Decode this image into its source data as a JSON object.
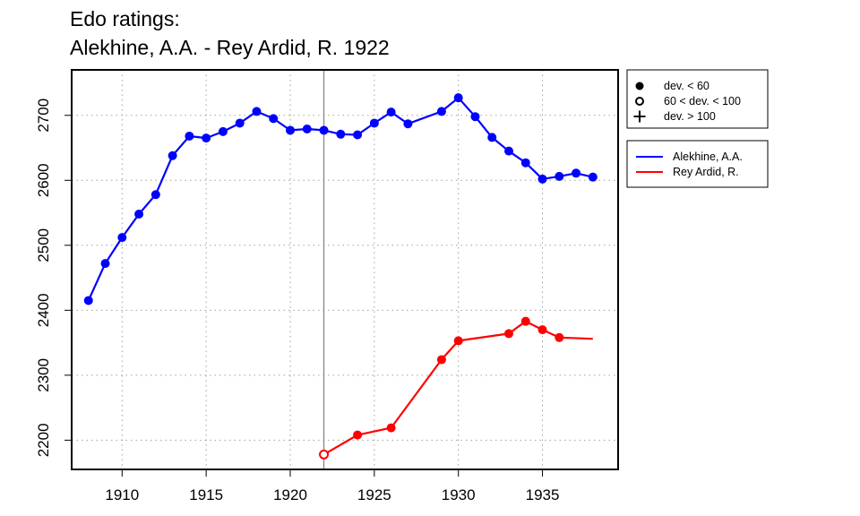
{
  "chart_data": {
    "type": "line",
    "title": "Edo ratings:",
    "subtitle": "Alekhine, A.A. - Rey Ardid, R. 1922",
    "xlabel": "",
    "ylabel": "",
    "xlim": [
      1907,
      1939.5
    ],
    "ylim": [
      2155,
      2770
    ],
    "x_ticks": [
      1910,
      1915,
      1920,
      1925,
      1930,
      1935
    ],
    "y_ticks": [
      2200,
      2300,
      2400,
      2500,
      2600,
      2700
    ],
    "grid": true,
    "highlight_year": 1922,
    "marker_legend": [
      {
        "symbol": "filled-circle",
        "label": "dev. < 60"
      },
      {
        "symbol": "open-circle",
        "label": "60 < dev. < 100"
      },
      {
        "symbol": "plus",
        "label": "dev. > 100"
      }
    ],
    "legend_position": "top-right, outside plot",
    "series": [
      {
        "name": "Alekhine, A.A.",
        "color": "#0000ff",
        "points": [
          {
            "x": 1908,
            "y": 2415,
            "m": "filled"
          },
          {
            "x": 1909,
            "y": 2472,
            "m": "filled"
          },
          {
            "x": 1910,
            "y": 2512,
            "m": "filled"
          },
          {
            "x": 1911,
            "y": 2548,
            "m": "filled"
          },
          {
            "x": 1912,
            "y": 2578,
            "m": "filled"
          },
          {
            "x": 1913,
            "y": 2638,
            "m": "filled"
          },
          {
            "x": 1914,
            "y": 2668,
            "m": "filled"
          },
          {
            "x": 1915,
            "y": 2665,
            "m": "filled"
          },
          {
            "x": 1916,
            "y": 2675,
            "m": "filled"
          },
          {
            "x": 1917,
            "y": 2688,
            "m": "filled"
          },
          {
            "x": 1918,
            "y": 2706,
            "m": "filled"
          },
          {
            "x": 1919,
            "y": 2695,
            "m": "filled"
          },
          {
            "x": 1920,
            "y": 2677,
            "m": "filled"
          },
          {
            "x": 1921,
            "y": 2679,
            "m": "filled"
          },
          {
            "x": 1922,
            "y": 2677,
            "m": "filled"
          },
          {
            "x": 1923,
            "y": 2671,
            "m": "filled"
          },
          {
            "x": 1924,
            "y": 2670,
            "m": "filled"
          },
          {
            "x": 1925,
            "y": 2688,
            "m": "filled"
          },
          {
            "x": 1926,
            "y": 2705,
            "m": "filled"
          },
          {
            "x": 1927,
            "y": 2687,
            "m": "filled"
          },
          {
            "x": 1929,
            "y": 2706,
            "m": "filled"
          },
          {
            "x": 1930,
            "y": 2727,
            "m": "filled"
          },
          {
            "x": 1931,
            "y": 2698,
            "m": "filled"
          },
          {
            "x": 1932,
            "y": 2666,
            "m": "filled"
          },
          {
            "x": 1933,
            "y": 2645,
            "m": "filled"
          },
          {
            "x": 1934,
            "y": 2627,
            "m": "filled"
          },
          {
            "x": 1935,
            "y": 2602,
            "m": "filled"
          },
          {
            "x": 1936,
            "y": 2606,
            "m": "filled"
          },
          {
            "x": 1937,
            "y": 2611,
            "m": "filled"
          },
          {
            "x": 1938,
            "y": 2605,
            "m": "filled"
          }
        ]
      },
      {
        "name": "Rey Ardid, R.",
        "color": "#ff0000",
        "points": [
          {
            "x": 1922,
            "y": 2178,
            "m": "open"
          },
          {
            "x": 1924,
            "y": 2208,
            "m": "filled"
          },
          {
            "x": 1926,
            "y": 2219,
            "m": "filled"
          },
          {
            "x": 1929,
            "y": 2324,
            "m": "filled"
          },
          {
            "x": 1930,
            "y": 2353,
            "m": "filled"
          },
          {
            "x": 1933,
            "y": 2364,
            "m": "filled"
          },
          {
            "x": 1934,
            "y": 2383,
            "m": "filled"
          },
          {
            "x": 1935,
            "y": 2370,
            "m": "filled"
          },
          {
            "x": 1936,
            "y": 2358,
            "m": "filled"
          },
          {
            "x": 1938,
            "y": 2356,
            "m": "none"
          }
        ]
      }
    ]
  }
}
